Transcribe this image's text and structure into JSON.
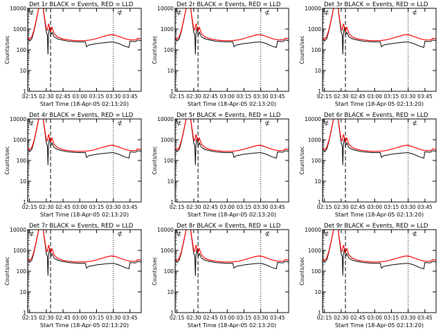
{
  "shared": {
    "ylabel": "Counts/sec",
    "xlabel": "Start Time (18-Apr-05 02:13:20)",
    "yticks": [
      "1",
      "10",
      "100",
      "1000",
      "10000"
    ],
    "xticks": [
      "02:15",
      "02:30",
      "02:45",
      "03:00",
      "03:15",
      "03:30",
      "03:45"
    ],
    "line_colors": {
      "events": "#000000",
      "lld": "#ff0000"
    },
    "vlines": {
      "dotted": [
        "02:13:45",
        "03:30"
      ],
      "dashed": [
        "02:33:50"
      ]
    },
    "legend_glyph": "⊄"
  },
  "chart_data": [
    {
      "type": "line",
      "title": "Det 1r BLACK = Events, RED = LLD",
      "xlim": [
        "02:13:20",
        "03:55"
      ],
      "ylim": [
        1,
        10000
      ],
      "yscale": "log"
    },
    {
      "type": "line",
      "title": "Det 2r BLACK = Events, RED = LLD",
      "xlim": [
        "02:13:20",
        "03:55"
      ],
      "ylim": [
        1,
        10000
      ],
      "yscale": "log"
    },
    {
      "type": "line",
      "title": "Det 3r BLACK = Events, RED = LLD",
      "xlim": [
        "02:13:20",
        "03:55"
      ],
      "ylim": [
        1,
        10000
      ],
      "yscale": "log"
    },
    {
      "type": "line",
      "title": "Det 4r BLACK = Events, RED = LLD",
      "xlim": [
        "02:13:20",
        "03:55"
      ],
      "ylim": [
        1,
        10000
      ],
      "yscale": "log"
    },
    {
      "type": "line",
      "title": "Det 5r BLACK = Events, RED = LLD",
      "xlim": [
        "02:13:20",
        "03:55"
      ],
      "ylim": [
        1,
        10000
      ],
      "yscale": "log"
    },
    {
      "type": "line",
      "title": "Det 6r BLACK = Events, RED = LLD",
      "xlim": [
        "02:13:20",
        "03:55"
      ],
      "ylim": [
        1,
        10000
      ],
      "yscale": "log"
    },
    {
      "type": "line",
      "title": "Det 7r BLACK = Events, RED = LLD",
      "xlim": [
        "02:13:20",
        "03:55"
      ],
      "ylim": [
        1,
        10000
      ],
      "yscale": "log"
    },
    {
      "type": "line",
      "title": "Det 8r BLACK = Events, RED = LLD",
      "xlim": [
        "02:13:20",
        "03:55"
      ],
      "ylim": [
        1,
        10000
      ],
      "yscale": "log"
    },
    {
      "type": "line",
      "title": "Det 9r BLACK = Events, RED = LLD",
      "xlim": [
        "02:13:20",
        "03:55"
      ],
      "ylim": [
        1,
        10000
      ],
      "yscale": "log"
    }
  ],
  "series_shape": {
    "lld": [
      [
        "02:13:20",
        400
      ],
      [
        "02:15",
        320
      ],
      [
        "02:17",
        420
      ],
      [
        "02:19",
        900
      ],
      [
        "02:21",
        2800
      ],
      [
        "02:23",
        9000
      ],
      [
        "02:24",
        14000
      ],
      [
        "02:27",
        14000
      ],
      [
        "02:28",
        5000
      ],
      [
        "02:30",
        1000
      ],
      [
        "02:31",
        900
      ],
      [
        "02:32",
        1800
      ],
      [
        "02:34",
        800
      ],
      [
        "02:35",
        1200
      ],
      [
        "02:37",
        600
      ],
      [
        "02:40",
        420
      ],
      [
        "02:45",
        330
      ],
      [
        "02:50",
        300
      ],
      [
        "02:55",
        280
      ],
      [
        "03:00",
        275
      ],
      [
        "03:05",
        280
      ],
      [
        "03:10",
        300
      ],
      [
        "03:15",
        350
      ],
      [
        "03:20",
        420
      ],
      [
        "03:25",
        500
      ],
      [
        "03:28",
        540
      ],
      [
        "03:31",
        520
      ],
      [
        "03:35",
        440
      ],
      [
        "03:40",
        350
      ],
      [
        "03:45",
        300
      ],
      [
        "03:50",
        300
      ],
      [
        "03:52",
        360
      ],
      [
        "03:55",
        330
      ]
    ],
    "events": [
      [
        "02:13:20",
        340
      ],
      [
        "02:15",
        260
      ],
      [
        "02:17",
        340
      ],
      [
        "02:19",
        800
      ],
      [
        "02:21",
        2600
      ],
      [
        "02:23",
        9000
      ],
      [
        "02:24",
        14000
      ],
      [
        "02:27",
        14000
      ],
      [
        "02:28",
        4500
      ],
      [
        "02:30",
        700
      ],
      [
        "02:31",
        500
      ],
      [
        "02:31:30",
        60
      ],
      [
        "02:32",
        600
      ],
      [
        "02:33",
        1200
      ],
      [
        "02:34",
        500
      ],
      [
        "02:35",
        700
      ],
      [
        "02:37",
        420
      ],
      [
        "02:40",
        340
      ],
      [
        "02:45",
        290
      ],
      [
        "02:50",
        260
      ],
      [
        "02:55",
        245
      ],
      [
        "03:00",
        240
      ],
      [
        "03:05",
        240
      ],
      [
        "03:06",
        140
      ],
      [
        "03:08",
        170
      ],
      [
        "03:15",
        200
      ],
      [
        "03:25",
        230
      ],
      [
        "03:30",
        240
      ],
      [
        "03:35",
        200
      ],
      [
        "03:40",
        150
      ],
      [
        "03:44",
        130
      ],
      [
        "03:45",
        260
      ],
      [
        "03:50",
        250
      ],
      [
        "03:52",
        300
      ],
      [
        "03:55",
        270
      ]
    ]
  }
}
